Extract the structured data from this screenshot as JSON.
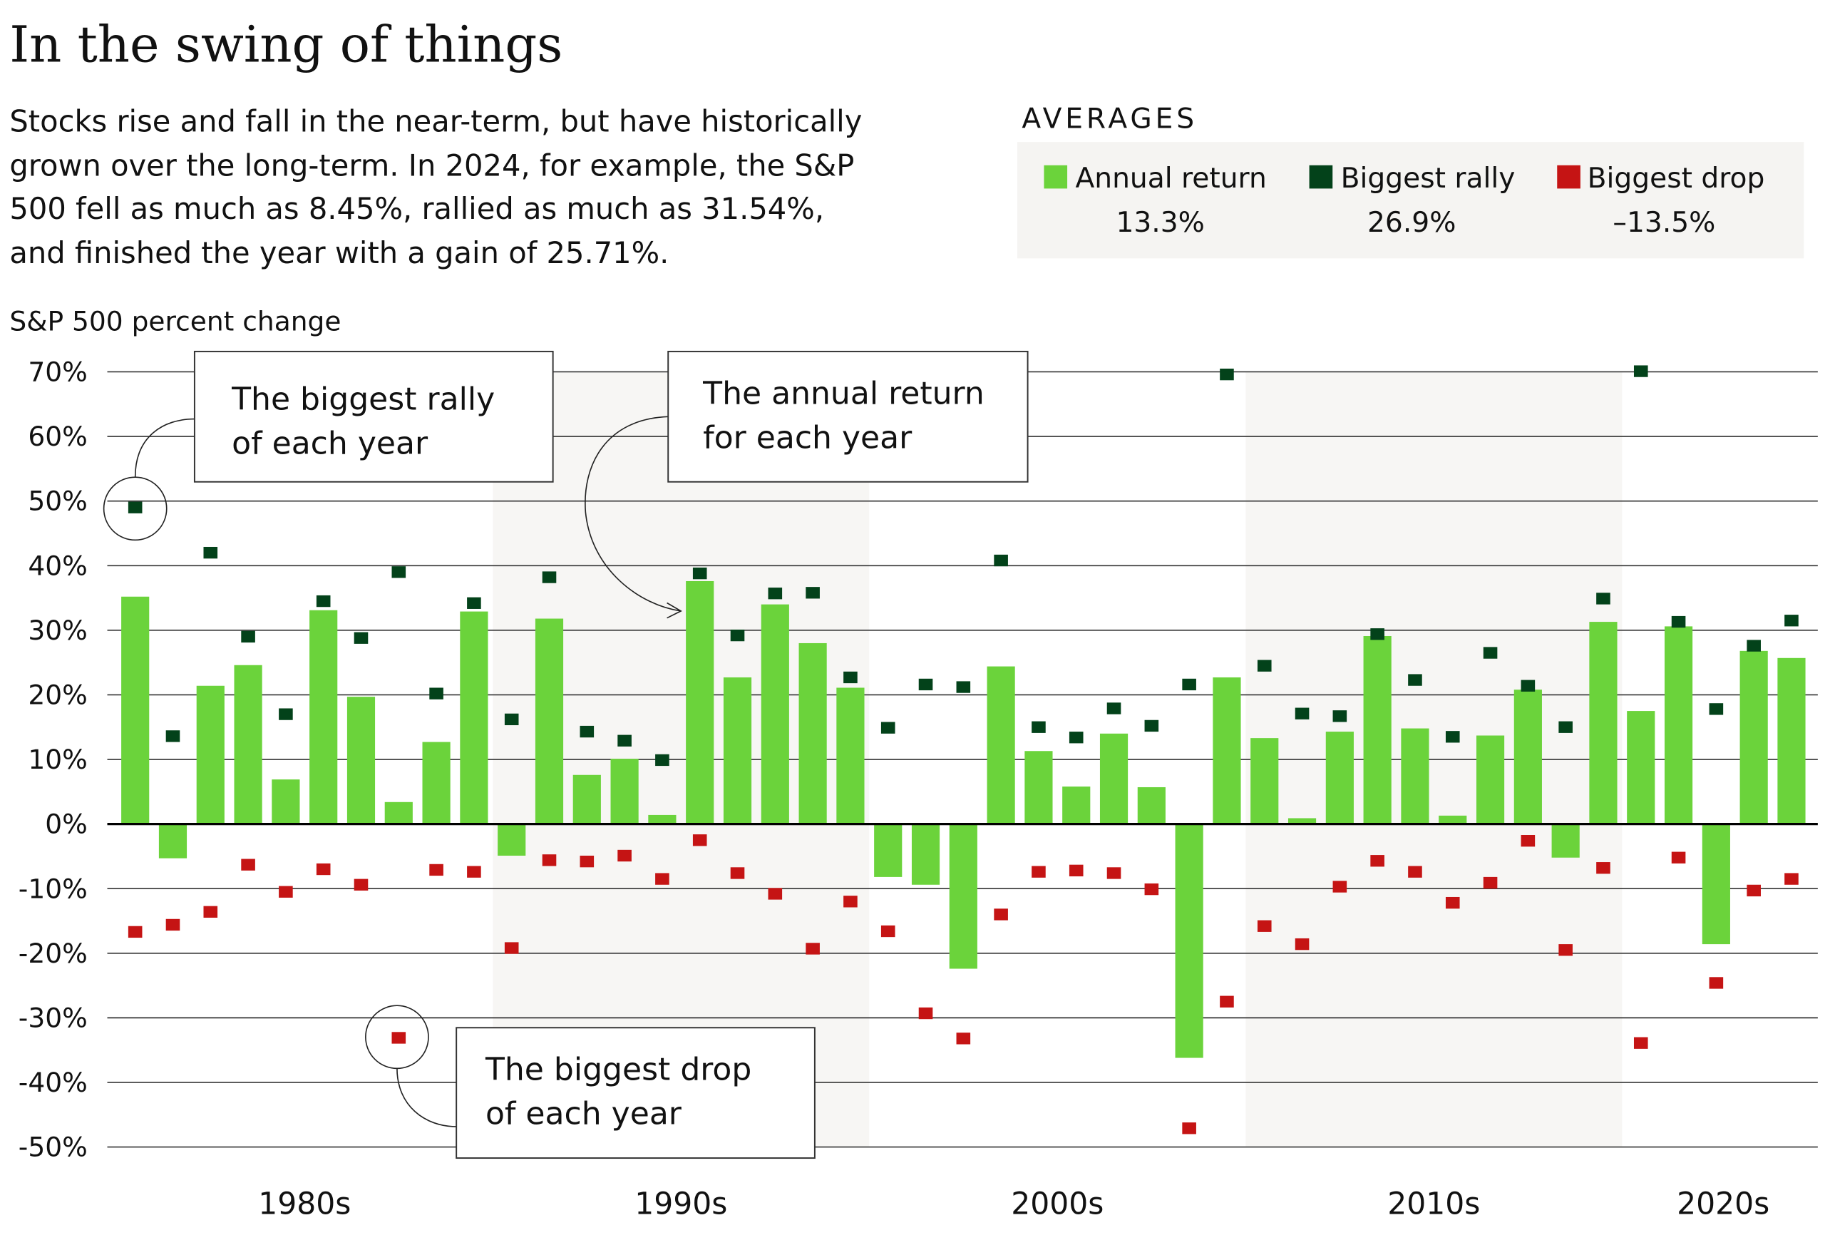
{
  "title": "In the swing of things",
  "subtitle_lines": [
    "Stocks rise and fall in the near-term, but have historically",
    "grown over the long-term. In 2024, for example, the S&P",
    "500 fell as much as 8.45%, rallied as much as 31.54%,",
    "and finished the year with a gain of 25.71%."
  ],
  "averages": {
    "heading": "AVERAGES",
    "items": [
      {
        "label": "Annual return",
        "value": "13.3%",
        "color": "#6bd33b"
      },
      {
        "label": "Biggest rally",
        "value": "26.9%",
        "color": "#03421a"
      },
      {
        "label": "Biggest drop",
        "value": "–13.5%",
        "color": "#c51414"
      }
    ]
  },
  "annotations": {
    "rally": [
      "The biggest rally",
      "of each year"
    ],
    "annual": [
      "The annual return",
      "for each year"
    ],
    "drop": [
      "The biggest drop",
      "of each year"
    ]
  },
  "chart_data": {
    "type": "bar",
    "ylabel": "S&P 500 percent change",
    "ylim": [
      -50,
      70
    ],
    "yticks": [
      "70%",
      "60%",
      "50%",
      "40%",
      "30%",
      "20%",
      "10%",
      "0%",
      "-10%",
      "-20%",
      "-30%",
      "-40%",
      "-50%"
    ],
    "ytick_values": [
      70,
      60,
      50,
      40,
      30,
      20,
      10,
      0,
      -10,
      -20,
      -30,
      -40,
      -50
    ],
    "decade_labels": [
      "1980s",
      "1990s",
      "2000s",
      "2010s",
      "2020s"
    ],
    "shaded_decades": [
      "1990s",
      "2010s"
    ],
    "grid": true,
    "colors": {
      "annual": "#6bd33b",
      "rally": "#03421a",
      "drop": "#c51414",
      "shading": "#f7f6f4"
    },
    "x": [
      1980,
      1981,
      1982,
      1983,
      1984,
      1985,
      1986,
      1987,
      1988,
      1989,
      1990,
      1991,
      1992,
      1993,
      1994,
      1995,
      1996,
      1997,
      1998,
      1999,
      2000,
      2001,
      2002,
      2003,
      2004,
      2005,
      2006,
      2007,
      2008,
      2009,
      2010,
      2011,
      2012,
      2013,
      2014,
      2015,
      2016,
      2017,
      2018,
      2019,
      2020,
      2021,
      2022,
      2023,
      2024
    ],
    "series": [
      {
        "name": "Annual return",
        "type": "bar",
        "values": [
          35.2,
          -5.3,
          21.4,
          24.6,
          6.9,
          33.1,
          19.7,
          3.4,
          12.7,
          32.9,
          -4.9,
          31.8,
          7.6,
          10.1,
          1.4,
          37.6,
          22.7,
          34.0,
          28.0,
          21.1,
          -8.2,
          -9.4,
          -22.4,
          24.4,
          11.3,
          5.8,
          14.0,
          5.7,
          -36.2,
          22.7,
          13.3,
          0.9,
          14.3,
          29.1,
          14.8,
          1.3,
          13.7,
          20.8,
          -5.2,
          31.3,
          17.5,
          30.6,
          -18.6,
          26.8,
          25.7
        ]
      },
      {
        "name": "Biggest rally",
        "type": "scatter",
        "values": [
          49.0,
          13.6,
          42.0,
          29.0,
          17.0,
          34.5,
          28.8,
          39.0,
          20.2,
          34.2,
          16.2,
          38.2,
          14.3,
          12.9,
          9.9,
          38.8,
          29.2,
          35.7,
          35.8,
          22.7,
          14.9,
          21.6,
          21.2,
          40.8,
          15.0,
          13.4,
          17.9,
          15.2,
          21.6,
          69.6,
          24.5,
          17.1,
          16.7,
          29.4,
          22.3,
          13.5,
          26.5,
          21.4,
          15.0,
          34.9,
          70.1,
          31.3,
          17.8,
          27.6,
          31.5
        ]
      },
      {
        "name": "Biggest drop",
        "type": "scatter",
        "values": [
          -16.7,
          -15.6,
          -13.6,
          -6.3,
          -10.5,
          -7.0,
          -9.4,
          -33.1,
          -7.1,
          -7.4,
          -19.2,
          -5.6,
          -5.8,
          -4.9,
          -8.5,
          -2.5,
          -7.6,
          -10.8,
          -19.3,
          -12.0,
          -16.6,
          -29.3,
          -33.2,
          -14.0,
          -7.4,
          -7.2,
          -7.6,
          -10.1,
          -47.1,
          -27.5,
          -15.8,
          -18.6,
          -9.7,
          -5.7,
          -7.4,
          -12.2,
          -9.1,
          -2.6,
          -19.5,
          -6.8,
          -33.9,
          -5.2,
          -24.6,
          -10.3,
          -8.5
        ]
      }
    ]
  }
}
